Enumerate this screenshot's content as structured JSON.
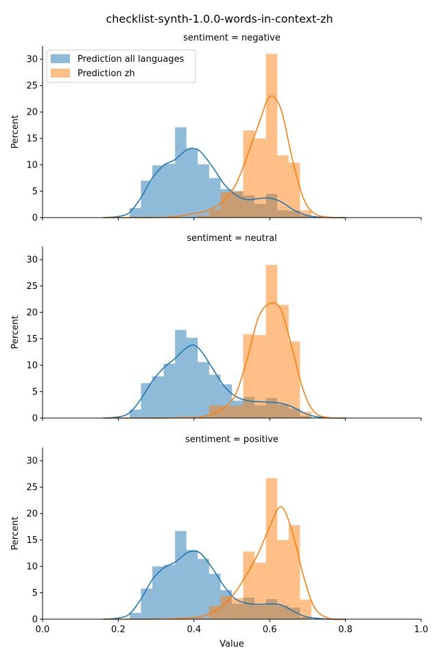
{
  "chart_data": {
    "type": "histogram",
    "title": "checklist-synth-1.0.0-words-in-context-zh",
    "xlabel": "Value",
    "ylabel": "Percent",
    "xlim": [
      0.0,
      1.0
    ],
    "ylim": [
      0,
      32.5
    ],
    "xticks": [
      "0.0",
      "0.2",
      "0.4",
      "0.6",
      "0.8",
      "1.0"
    ],
    "yticks": [
      "0",
      "5",
      "10",
      "15",
      "20",
      "25",
      "30"
    ],
    "bin_edges": [
      0.23,
      0.26,
      0.29,
      0.32,
      0.35,
      0.38,
      0.41,
      0.44,
      0.47,
      0.5,
      0.53,
      0.56,
      0.59,
      0.62,
      0.65,
      0.68,
      0.71
    ],
    "series": [
      {
        "name": "Prediction all languages",
        "color": "#1f77b4"
      },
      {
        "name": "Prediction zh",
        "color": "#ff7f0e"
      }
    ],
    "legend": {
      "position": "top-left",
      "panel": 0
    },
    "panels": [
      {
        "title": "sentiment = negative",
        "hist": {
          "all": [
            1.8,
            7.0,
            9.9,
            10.2,
            17.1,
            13.1,
            10.1,
            7.5,
            5.4,
            5.0,
            4.2,
            2.6,
            4.5,
            1.4,
            1.3,
            0.4
          ],
          "zh": [
            0.0,
            0.0,
            0.0,
            0.0,
            0.0,
            0.0,
            0.4,
            1.6,
            4.8,
            5.0,
            16.5,
            15.0,
            31.0,
            11.8,
            10.4,
            1.4
          ]
        },
        "kde": {
          "x": [
            0.16,
            0.2,
            0.23,
            0.26,
            0.29,
            0.32,
            0.35,
            0.38,
            0.4,
            0.42,
            0.45,
            0.48,
            0.51,
            0.54,
            0.57,
            0.6,
            0.63,
            0.66,
            0.69,
            0.72,
            0.76,
            0.8
          ],
          "all": [
            0.0,
            0.2,
            1.0,
            3.8,
            7.5,
            9.9,
            11.0,
            12.8,
            13.1,
            12.3,
            9.5,
            6.3,
            4.3,
            3.4,
            3.6,
            3.7,
            3.0,
            1.6,
            0.6,
            0.15,
            0.0,
            0.0
          ],
          "zh": [
            0.0,
            0.0,
            0.0,
            0.0,
            0.0,
            0.05,
            0.2,
            0.5,
            0.8,
            1.0,
            1.8,
            3.3,
            6.2,
            11.5,
            17.5,
            22.9,
            20.5,
            11.0,
            3.5,
            0.7,
            0.05,
            0.0
          ]
        }
      },
      {
        "title": "sentiment = neutral",
        "hist": {
          "all": [
            1.6,
            6.6,
            7.9,
            10.3,
            16.7,
            15.2,
            10.6,
            8.2,
            6.4,
            3.3,
            4.0,
            2.4,
            3.8,
            2.6,
            1.8,
            0.4
          ],
          "zh": [
            0.0,
            0.0,
            0.0,
            0.0,
            0.0,
            0.0,
            0.2,
            2.4,
            2.3,
            2.3,
            15.9,
            15.7,
            29.0,
            21.4,
            14.5,
            1.2
          ]
        },
        "kde": {
          "x": [
            0.16,
            0.2,
            0.23,
            0.26,
            0.29,
            0.32,
            0.35,
            0.38,
            0.4,
            0.42,
            0.45,
            0.48,
            0.51,
            0.54,
            0.57,
            0.6,
            0.63,
            0.66,
            0.69,
            0.72,
            0.76,
            0.8
          ],
          "all": [
            0.0,
            0.2,
            1.0,
            3.6,
            7.0,
            9.5,
            11.3,
            13.3,
            13.8,
            12.6,
            9.3,
            6.0,
            4.1,
            3.3,
            3.1,
            3.0,
            2.8,
            2.1,
            1.0,
            0.3,
            0.0,
            0.0
          ],
          "zh": [
            0.0,
            0.0,
            0.0,
            0.0,
            0.0,
            0.0,
            0.05,
            0.1,
            0.1,
            0.2,
            0.8,
            2.0,
            4.5,
            11.0,
            19.0,
            21.7,
            20.5,
            13.0,
            5.0,
            1.0,
            0.05,
            0.0
          ]
        }
      },
      {
        "title": "sentiment = positive",
        "hist": {
          "all": [
            1.2,
            5.8,
            10.0,
            10.3,
            16.7,
            13.1,
            11.4,
            8.6,
            5.5,
            2.9,
            4.1,
            2.6,
            3.8,
            2.6,
            2.2,
            0.4
          ],
          "zh": [
            0.0,
            0.0,
            0.0,
            0.0,
            0.0,
            0.0,
            0.2,
            2.5,
            4.4,
            4.0,
            12.8,
            10.7,
            26.7,
            15.0,
            17.8,
            3.7
          ]
        },
        "kde": {
          "x": [
            0.16,
            0.2,
            0.23,
            0.26,
            0.29,
            0.32,
            0.35,
            0.38,
            0.4,
            0.42,
            0.45,
            0.48,
            0.51,
            0.54,
            0.57,
            0.6,
            0.63,
            0.66,
            0.69,
            0.72,
            0.76,
            0.8
          ],
          "all": [
            0.0,
            0.2,
            1.0,
            3.8,
            7.5,
            9.7,
            10.8,
            12.5,
            12.9,
            12.3,
            9.5,
            6.2,
            3.8,
            3.0,
            2.8,
            2.9,
            2.7,
            1.6,
            0.6,
            0.2,
            0.0,
            0.0
          ],
          "zh": [
            0.0,
            0.0,
            0.0,
            0.0,
            0.0,
            0.05,
            0.1,
            0.2,
            0.3,
            0.5,
            1.3,
            2.8,
            5.2,
            8.6,
            12.5,
            17.5,
            21.3,
            16.5,
            8.0,
            2.0,
            0.1,
            0.0
          ]
        }
      }
    ]
  }
}
